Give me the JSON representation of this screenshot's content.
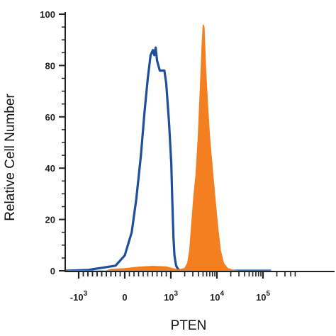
{
  "chart_data": {
    "type": "area",
    "title": "",
    "xlabel": "PTEN",
    "ylabel": "Relative Cell Number",
    "ylim": [
      0,
      100
    ],
    "x_scale": "biexponential",
    "x_ticks": [
      {
        "base": "-10",
        "exp": "3"
      },
      {
        "base": "0",
        "exp": ""
      },
      {
        "base": "10",
        "exp": "3"
      },
      {
        "base": "10",
        "exp": "4"
      },
      {
        "base": "10",
        "exp": "5"
      }
    ],
    "y_ticks": [
      "0",
      "20",
      "40",
      "60",
      "80",
      "100"
    ],
    "grid": false,
    "legend": "none",
    "series": [
      {
        "style": "outline",
        "color": "#1f4e9c",
        "points": [
          [
            -2000,
            0
          ],
          [
            -800,
            0.3
          ],
          [
            -200,
            2
          ],
          [
            0,
            6
          ],
          [
            150,
            15
          ],
          [
            250,
            28
          ],
          [
            350,
            45
          ],
          [
            430,
            62
          ],
          [
            500,
            75
          ],
          [
            560,
            84
          ],
          [
            610,
            86
          ],
          [
            640,
            84
          ],
          [
            670,
            87
          ],
          [
            700,
            82
          ],
          [
            760,
            78
          ],
          [
            820,
            78
          ],
          [
            860,
            78
          ],
          [
            900,
            73
          ],
          [
            960,
            58
          ],
          [
            1020,
            42
          ],
          [
            1080,
            26
          ],
          [
            1140,
            13
          ],
          [
            1200,
            6
          ],
          [
            1300,
            2
          ],
          [
            1450,
            0.5
          ],
          [
            1700,
            0
          ],
          [
            150000,
            0
          ]
        ]
      },
      {
        "style": "filled",
        "color": "#f47f20",
        "points": [
          [
            -2000,
            0
          ],
          [
            -400,
            0
          ],
          [
            -300,
            0.6
          ],
          [
            0,
            0.9
          ],
          [
            300,
            1.5
          ],
          [
            600,
            1.8
          ],
          [
            900,
            1.6
          ],
          [
            1100,
            0.9
          ],
          [
            1500,
            0.4
          ],
          [
            2000,
            1
          ],
          [
            2300,
            3
          ],
          [
            2550,
            8
          ],
          [
            2800,
            18
          ],
          [
            3100,
            28
          ],
          [
            3500,
            38
          ],
          [
            3900,
            52
          ],
          [
            4300,
            70
          ],
          [
            4700,
            87
          ],
          [
            5000,
            96
          ],
          [
            5300,
            95
          ],
          [
            5700,
            80
          ],
          [
            6300,
            65
          ],
          [
            7000,
            52
          ],
          [
            8000,
            40
          ],
          [
            9200,
            28
          ],
          [
            10500,
            17
          ],
          [
            12000,
            8
          ],
          [
            14000,
            3
          ],
          [
            17000,
            1
          ],
          [
            22000,
            0.3
          ],
          [
            30000,
            0
          ],
          [
            150000,
            0
          ]
        ]
      }
    ]
  }
}
